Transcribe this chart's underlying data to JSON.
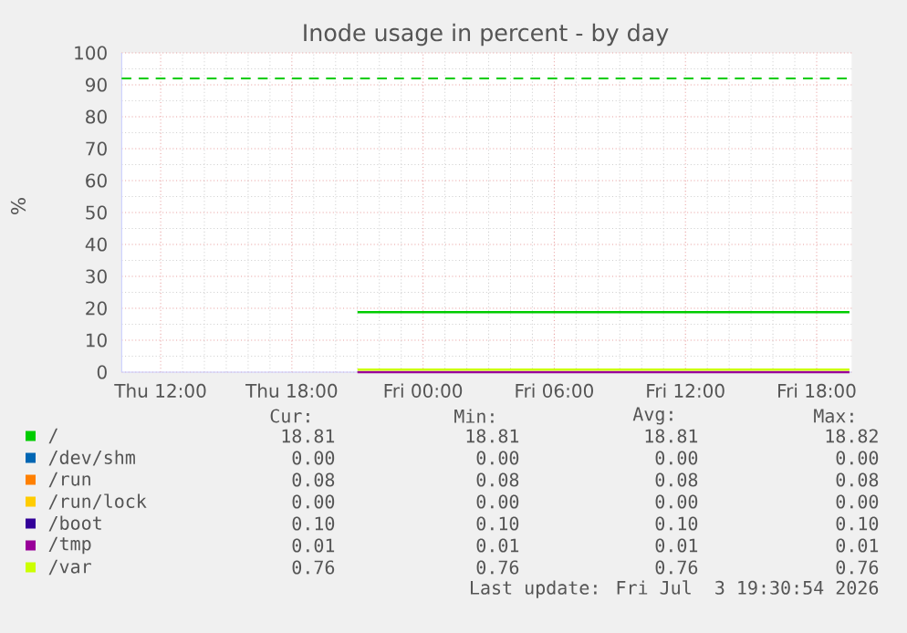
{
  "chart_data": {
    "type": "line",
    "title": "Inode usage in percent - by day",
    "ylabel": "%",
    "xlim": [
      "2026-07-02T10:13",
      "2026-07-03T19:36"
    ],
    "ylim": [
      0,
      100
    ],
    "xticks": [
      {
        "value": "2026-07-02T12:00",
        "label": "Thu 12:00"
      },
      {
        "value": "2026-07-02T18:00",
        "label": "Thu 18:00"
      },
      {
        "value": "2026-07-03T00:00",
        "label": "Fri 00:00"
      },
      {
        "value": "2026-07-03T06:00",
        "label": "Fri 06:00"
      },
      {
        "value": "2026-07-03T12:00",
        "label": "Fri 12:00"
      },
      {
        "value": "2026-07-03T18:00",
        "label": "Fri 18:00"
      }
    ],
    "yticks": [
      0,
      10,
      20,
      30,
      40,
      50,
      60,
      70,
      80,
      90,
      100
    ],
    "grid": true,
    "legend": "bottom",
    "marker": "none",
    "line_style": "solid",
    "ref_lines": [
      {
        "axis": "y",
        "value": 92,
        "color": "#00cc00",
        "line_style": "dashed"
      }
    ],
    "series": [
      {
        "name": "/",
        "color": "#00cc00",
        "x": [
          "2026-07-02T21:00",
          "2026-07-03T19:30"
        ],
        "values": [
          18.8,
          18.8
        ]
      },
      {
        "name": "/dev/shm",
        "color": "#0066b3",
        "values": [
          null,
          null
        ]
      },
      {
        "name": "/run",
        "color": "#ff8000",
        "values": [
          null,
          null
        ]
      },
      {
        "name": "/run/lock",
        "color": "#ffcc00",
        "values": [
          null,
          null
        ]
      },
      {
        "name": "/boot",
        "color": "#330099",
        "values": [
          null,
          null
        ]
      },
      {
        "name": "/tmp",
        "color": "#990099",
        "x": [
          "2026-07-02T21:00",
          "2026-07-03T19:30"
        ],
        "values": [
          0,
          0
        ]
      },
      {
        "name": "/var",
        "color": "#ccff00",
        "x": [
          "2026-07-02T21:00",
          "2026-07-03T19:30"
        ],
        "values": [
          0.8,
          0.8
        ]
      }
    ],
    "annotations": [
      "Cur:",
      "Min:",
      "Avg:",
      "Max:",
      "18.81",
      "18.81",
      "18.81",
      "18.82",
      "0.00",
      "0.00",
      "0.00",
      "0.00",
      "0.08",
      "0.08",
      "0.08",
      "0.08",
      "0.00",
      "0.00",
      "0.00",
      "0.00",
      "0.10",
      "0.10",
      "0.10",
      "0.10",
      "0.01",
      "0.01",
      "0.01",
      "0.01",
      "0.76",
      "0.76",
      "0.76",
      "0.76",
      "Last update: Fri Jul  3 19:30:54 2026"
    ]
  }
}
